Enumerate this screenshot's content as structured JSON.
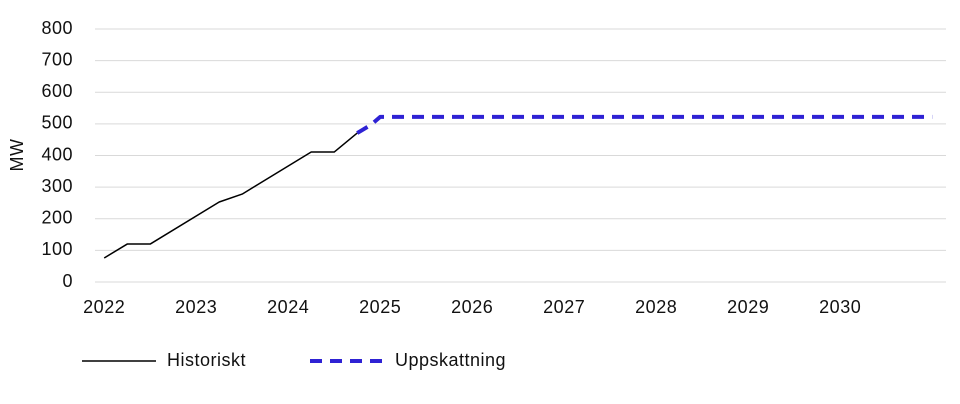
{
  "chart_data": {
    "type": "line",
    "y_label": "MW",
    "series": [
      {
        "name": "Historiskt",
        "color": "#000000",
        "dashed": false,
        "x": [
          2022.0,
          2022.25,
          2022.5,
          2023.25,
          2023.5,
          2024.25,
          2024.5,
          2024.75
        ],
        "values": [
          76,
          120,
          120,
          253,
          278,
          411,
          411,
          471
        ]
      },
      {
        "name": "Uppskattning",
        "color": "#2e22d4",
        "dashed": true,
        "x": [
          2024.75,
          2024.9,
          2025.0,
          2031.0
        ],
        "values": [
          471,
          497,
          522,
          522
        ]
      }
    ],
    "xlim": [
      2021.9,
      2031.15
    ],
    "xticks": [
      2022,
      2023,
      2024,
      2025,
      2026,
      2027,
      2028,
      2029,
      2030
    ],
    "ylim": [
      0,
      800
    ],
    "yticks": [
      0,
      100,
      200,
      300,
      400,
      500,
      600,
      700,
      800
    ],
    "grid": true
  }
}
